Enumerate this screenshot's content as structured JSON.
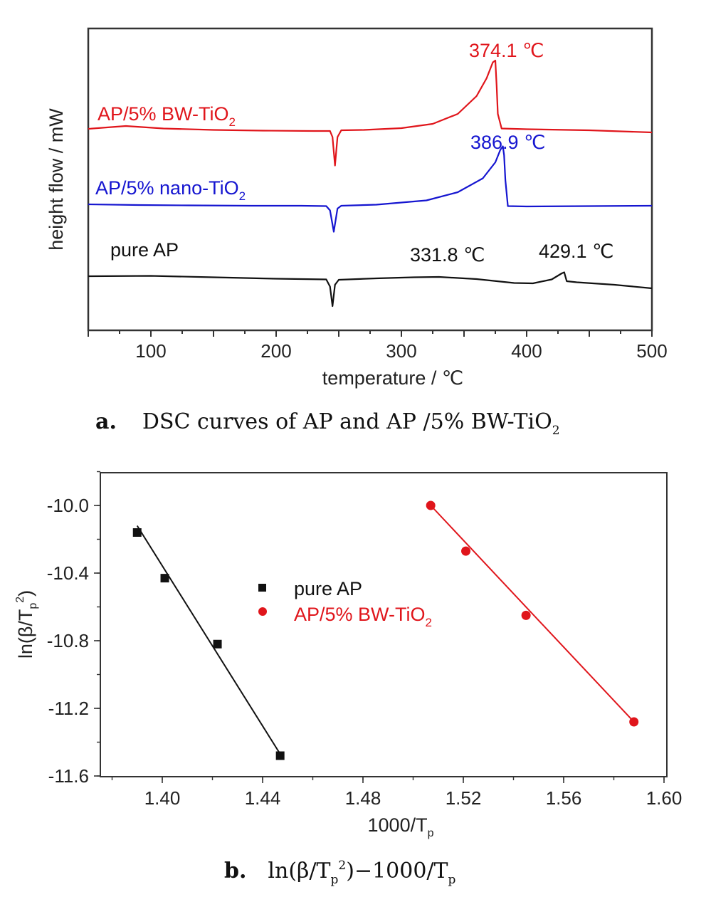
{
  "chart_data": [
    {
      "type": "line",
      "caption_letter": "a.",
      "caption_text": "DSC curves of AP and AP /5% BW-TiO",
      "caption_sub": "2",
      "xlabel": "temperature / ℃",
      "ylabel": "height flow / mW",
      "xlim": [
        50,
        500
      ],
      "xticks": [
        100,
        200,
        300,
        400,
        500
      ],
      "series": [
        {
          "name_main": "AP/5% BW-TiO",
          "name_sub": "2",
          "color": "#e0151b",
          "peak_label": "374.1 ℃",
          "points": [
            [
              50,
              0.2
            ],
            [
              80,
              -0.6
            ],
            [
              110,
              0.1
            ],
            [
              150,
              0.5
            ],
            [
              190,
              0.7
            ],
            [
              230,
              0.8
            ],
            [
              243,
              0.8
            ],
            [
              245,
              2.5
            ],
            [
              247,
              10.5
            ],
            [
              249,
              2.5
            ],
            [
              252,
              0.6
            ],
            [
              270,
              0.5
            ],
            [
              300,
              0.0
            ],
            [
              325,
              -1.2
            ],
            [
              345,
              -4.0
            ],
            [
              360,
              -9.0
            ],
            [
              368,
              -14.0
            ],
            [
              373,
              -18.5
            ],
            [
              375,
              -19.0
            ],
            [
              376,
              -12.0
            ],
            [
              377,
              -4.0
            ],
            [
              380,
              0.1
            ],
            [
              400,
              0.3
            ],
            [
              450,
              0.6
            ],
            [
              500,
              1.2
            ]
          ]
        },
        {
          "name_main": "AP/5% nano-TiO",
          "name_sub": "2",
          "color": "#1515d0",
          "peak_label": "386.9 ℃",
          "points": [
            [
              50,
              -0.2
            ],
            [
              90,
              0.0
            ],
            [
              130,
              0.1
            ],
            [
              180,
              0.2
            ],
            [
              220,
              0.2
            ],
            [
              240,
              0.3
            ],
            [
              243,
              1.5
            ],
            [
              246,
              7.5
            ],
            [
              249,
              1.0
            ],
            [
              252,
              0.2
            ],
            [
              280,
              -0.1
            ],
            [
              320,
              -1.3
            ],
            [
              345,
              -3.6
            ],
            [
              365,
              -7.5
            ],
            [
              375,
              -12.0
            ],
            [
              379,
              -15.5
            ],
            [
              381,
              -16.5
            ],
            [
              382,
              -14.0
            ],
            [
              383,
              -7.0
            ],
            [
              385,
              0.3
            ],
            [
              400,
              0.4
            ],
            [
              450,
              0.3
            ],
            [
              500,
              0.2
            ]
          ]
        },
        {
          "name_main": "pure AP",
          "name_sub": "",
          "color": "#111111",
          "peak_label": "331.8 ℃",
          "peak_label_2": "429.1 ℃",
          "points": [
            [
              50,
              -0.4
            ],
            [
              100,
              -0.5
            ],
            [
              150,
              -0.1
            ],
            [
              200,
              0.3
            ],
            [
              240,
              0.5
            ],
            [
              243,
              2.5
            ],
            [
              245,
              8.0
            ],
            [
              247,
              2.0
            ],
            [
              250,
              0.6
            ],
            [
              280,
              0.2
            ],
            [
              310,
              -0.1
            ],
            [
              330,
              -0.2
            ],
            [
              360,
              0.4
            ],
            [
              390,
              1.5
            ],
            [
              405,
              1.6
            ],
            [
              420,
              0.5
            ],
            [
              428,
              -1.2
            ],
            [
              430,
              -1.5
            ],
            [
              432,
              1.0
            ],
            [
              440,
              1.3
            ],
            [
              470,
              2.0
            ],
            [
              500,
              3.0
            ]
          ]
        }
      ]
    },
    {
      "type": "scatter",
      "caption_letter": "b.",
      "caption_text_1": "ln(β/T",
      "caption_sub_p": "p",
      "caption_sup_2": "2",
      "caption_text_2": ")−1000/T",
      "xlabel_main": "1000/T",
      "xlabel_sub": "p",
      "ylabel_1": "ln(β/T",
      "ylabel_sub": "p",
      "ylabel_sup": "2",
      "ylabel_2": ")",
      "xlim": [
        1.38,
        1.6
      ],
      "ylim": [
        -11.6,
        -9.8
      ],
      "xticks": [
        "1.40",
        "1.44",
        "1.48",
        "1.52",
        "1.56",
        "1.60"
      ],
      "yticks": [
        "-10.0",
        "-10.4",
        "-10.8",
        "-11.2",
        "-11.6"
      ],
      "series": [
        {
          "name": "pure AP",
          "marker": "square",
          "color": "#111111",
          "x": [
            1.39,
            1.401,
            1.422,
            1.447
          ],
          "y": [
            -10.16,
            -10.43,
            -10.82,
            -11.48
          ],
          "fit": [
            [
              1.39,
              -10.12
            ],
            [
              1.447,
              -11.47
            ]
          ]
        },
        {
          "name_main": "AP/5% BW-TiO",
          "name_sub": "2",
          "marker": "circle",
          "color": "#e0151b",
          "x": [
            1.507,
            1.521,
            1.545,
            1.588
          ],
          "y": [
            -10.0,
            -10.27,
            -10.65,
            -11.28
          ],
          "fit": [
            [
              1.507,
              -10.0
            ],
            [
              1.588,
              -11.28
            ]
          ]
        }
      ]
    }
  ]
}
